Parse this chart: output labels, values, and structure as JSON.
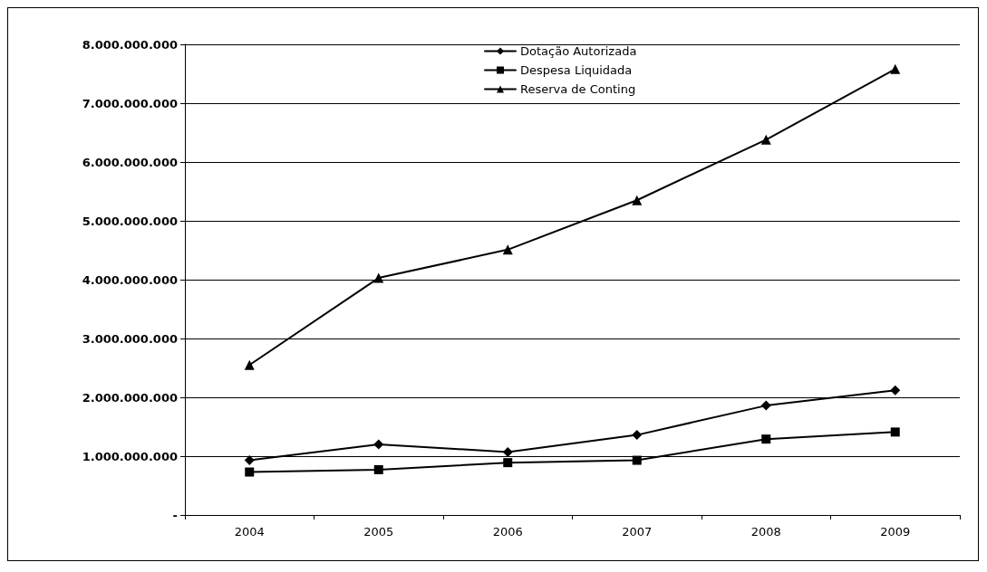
{
  "chart_data": {
    "type": "line",
    "categories": [
      "2004",
      "2005",
      "2006",
      "2007",
      "2008",
      "2009"
    ],
    "series": [
      {
        "name": "Dotação Autorizada",
        "color": "#000000",
        "marker": "diamond",
        "values": [
          930000000,
          1200000000,
          1070000000,
          1360000000,
          1860000000,
          2120000000
        ]
      },
      {
        "name": "Despesa Liquidada",
        "color": "#000000",
        "marker": "square",
        "values": [
          730000000,
          770000000,
          890000000,
          930000000,
          1290000000,
          1410000000
        ]
      },
      {
        "name": "Reserva de Conting",
        "color": "#000000",
        "marker": "triangle",
        "values": [
          2550000000,
          4030000000,
          4510000000,
          5350000000,
          6380000000,
          7580000000
        ]
      }
    ],
    "ylim": [
      0,
      8000000000
    ],
    "yticks": [
      {
        "value": 0,
        "label": "-"
      },
      {
        "value": 1000000000,
        "label": "1.000.000.000"
      },
      {
        "value": 2000000000,
        "label": "2.000.000.000"
      },
      {
        "value": 3000000000,
        "label": "3.000.000.000"
      },
      {
        "value": 4000000000,
        "label": "4.000.000.000"
      },
      {
        "value": 5000000000,
        "label": "5.000.000.000"
      },
      {
        "value": 6000000000,
        "label": "6.000.000.000"
      },
      {
        "value": 7000000000,
        "label": "7.000.000.000"
      },
      {
        "value": 8000000000,
        "label": "8.000.000.000"
      }
    ],
    "grid": "y",
    "legend": "top",
    "line_style": "solid"
  }
}
